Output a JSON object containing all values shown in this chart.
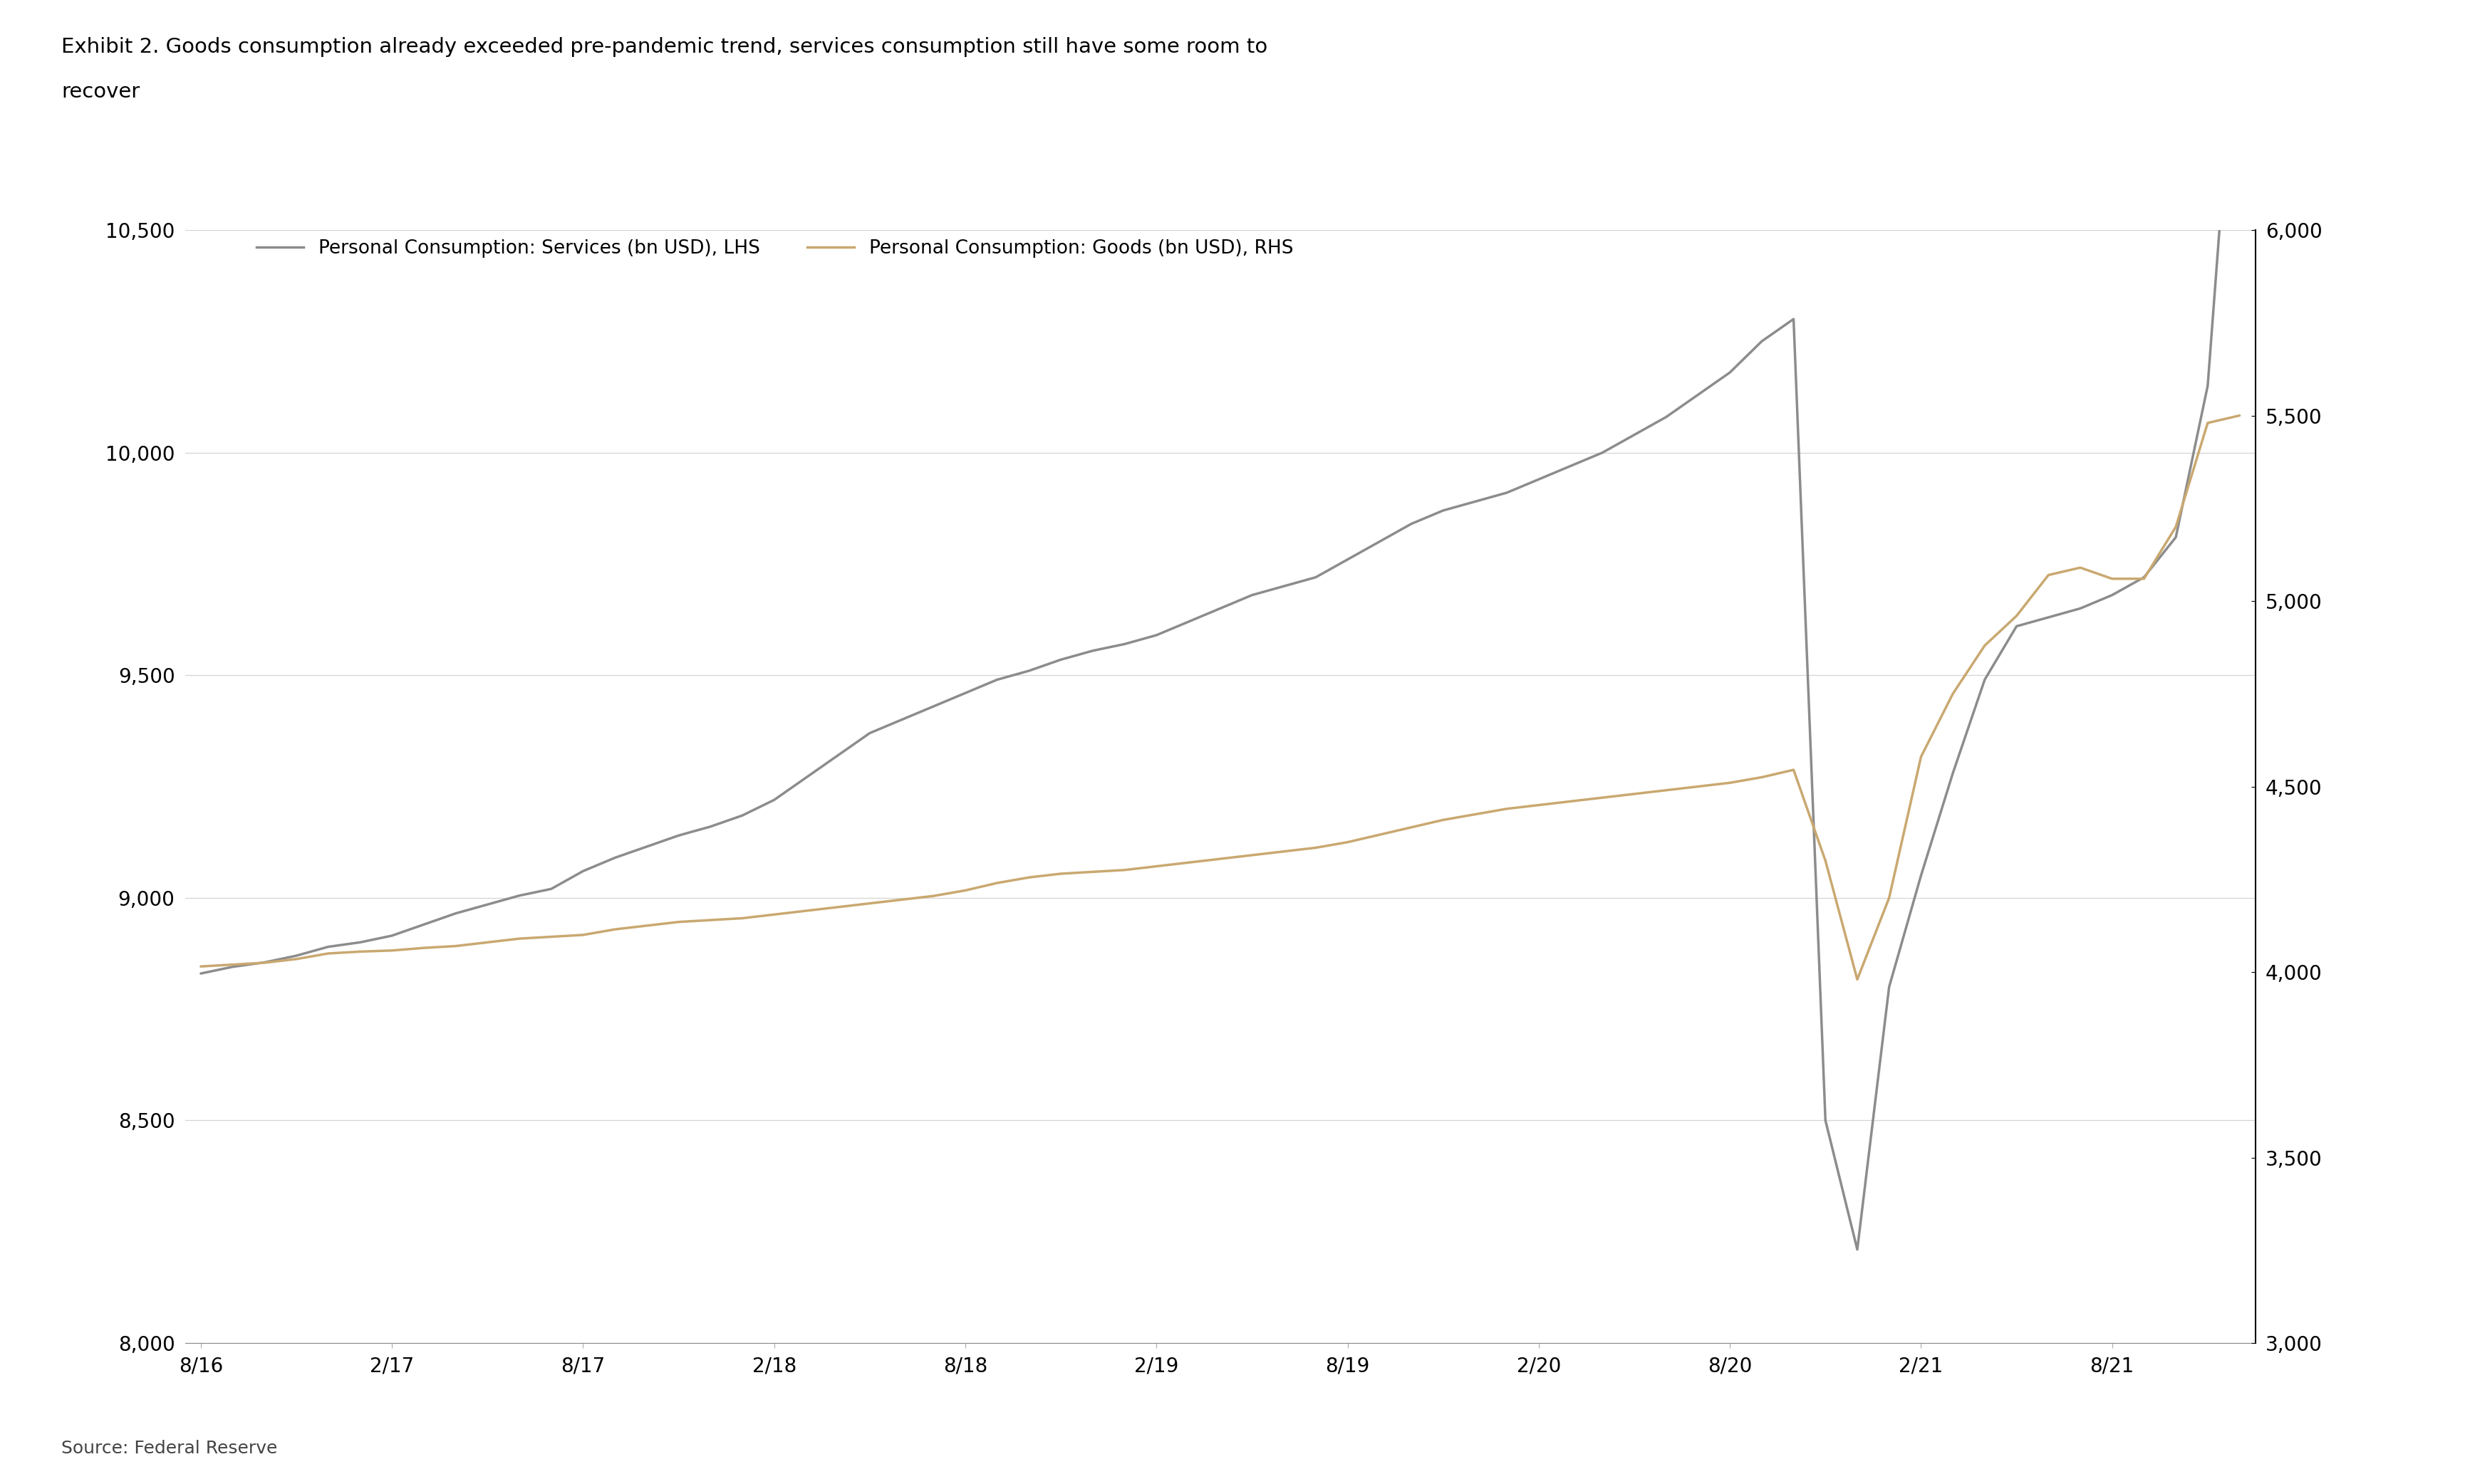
{
  "title_line1": "Exhibit 2. Goods consumption already exceeded pre-pandemic trend, services consumption still have some room to",
  "title_line2": "recover",
  "title_fontsize": 21,
  "source": "Source: Federal Reserve",
  "source_fontsize": 18,
  "legend_services": "Personal Consumption: Services (bn USD), LHS",
  "legend_goods": "Personal Consumption: Goods (bn USD), RHS",
  "legend_fontsize": 19,
  "color_services": "#8c8c8c",
  "color_goods": "#C9A870",
  "background": "#ffffff",
  "lhs_ylim": [
    8000,
    10500
  ],
  "rhs_ylim": [
    3000,
    6000
  ],
  "lhs_yticks": [
    8000,
    8500,
    9000,
    9500,
    10000,
    10500
  ],
  "rhs_yticks": [
    3000,
    3500,
    4000,
    4500,
    5000,
    5500,
    6000
  ],
  "xtick_labels": [
    "8/16",
    "2/17",
    "8/17",
    "2/18",
    "8/18",
    "2/19",
    "8/19",
    "2/20",
    "8/20",
    "2/21",
    "8/21"
  ],
  "tick_fontsize": 20,
  "linewidth": 2.5,
  "services_y": [
    8830,
    8845,
    8855,
    8870,
    8890,
    8900,
    8915,
    8940,
    8965,
    8985,
    9005,
    9020,
    9060,
    9090,
    9115,
    9140,
    9160,
    9185,
    9220,
    9270,
    9320,
    9370,
    9400,
    9430,
    9460,
    9490,
    9510,
    9535,
    9555,
    9570,
    9590,
    9620,
    9650,
    9680,
    9700,
    9720,
    9760,
    9800,
    9840,
    9870,
    9890,
    9910,
    9940,
    9970,
    10000,
    10040,
    10080,
    10130,
    10180,
    10250,
    10300,
    8500,
    8210,
    8800,
    9050,
    9280,
    9490,
    9610,
    9630,
    9650,
    9680,
    9720,
    9810,
    10150,
    11100
  ],
  "goods_y": [
    4015,
    4020,
    4025,
    4035,
    4050,
    4055,
    4058,
    4065,
    4070,
    4080,
    4090,
    4095,
    4100,
    4115,
    4125,
    4135,
    4140,
    4145,
    4155,
    4165,
    4175,
    4185,
    4195,
    4205,
    4220,
    4240,
    4255,
    4265,
    4270,
    4275,
    4285,
    4295,
    4305,
    4315,
    4325,
    4335,
    4350,
    4370,
    4390,
    4410,
    4425,
    4440,
    4450,
    4460,
    4470,
    4480,
    4490,
    4500,
    4510,
    4525,
    4545,
    4300,
    3980,
    4200,
    4580,
    4750,
    4880,
    4960,
    5070,
    5090,
    5060,
    5060,
    5200,
    5480,
    5500
  ]
}
